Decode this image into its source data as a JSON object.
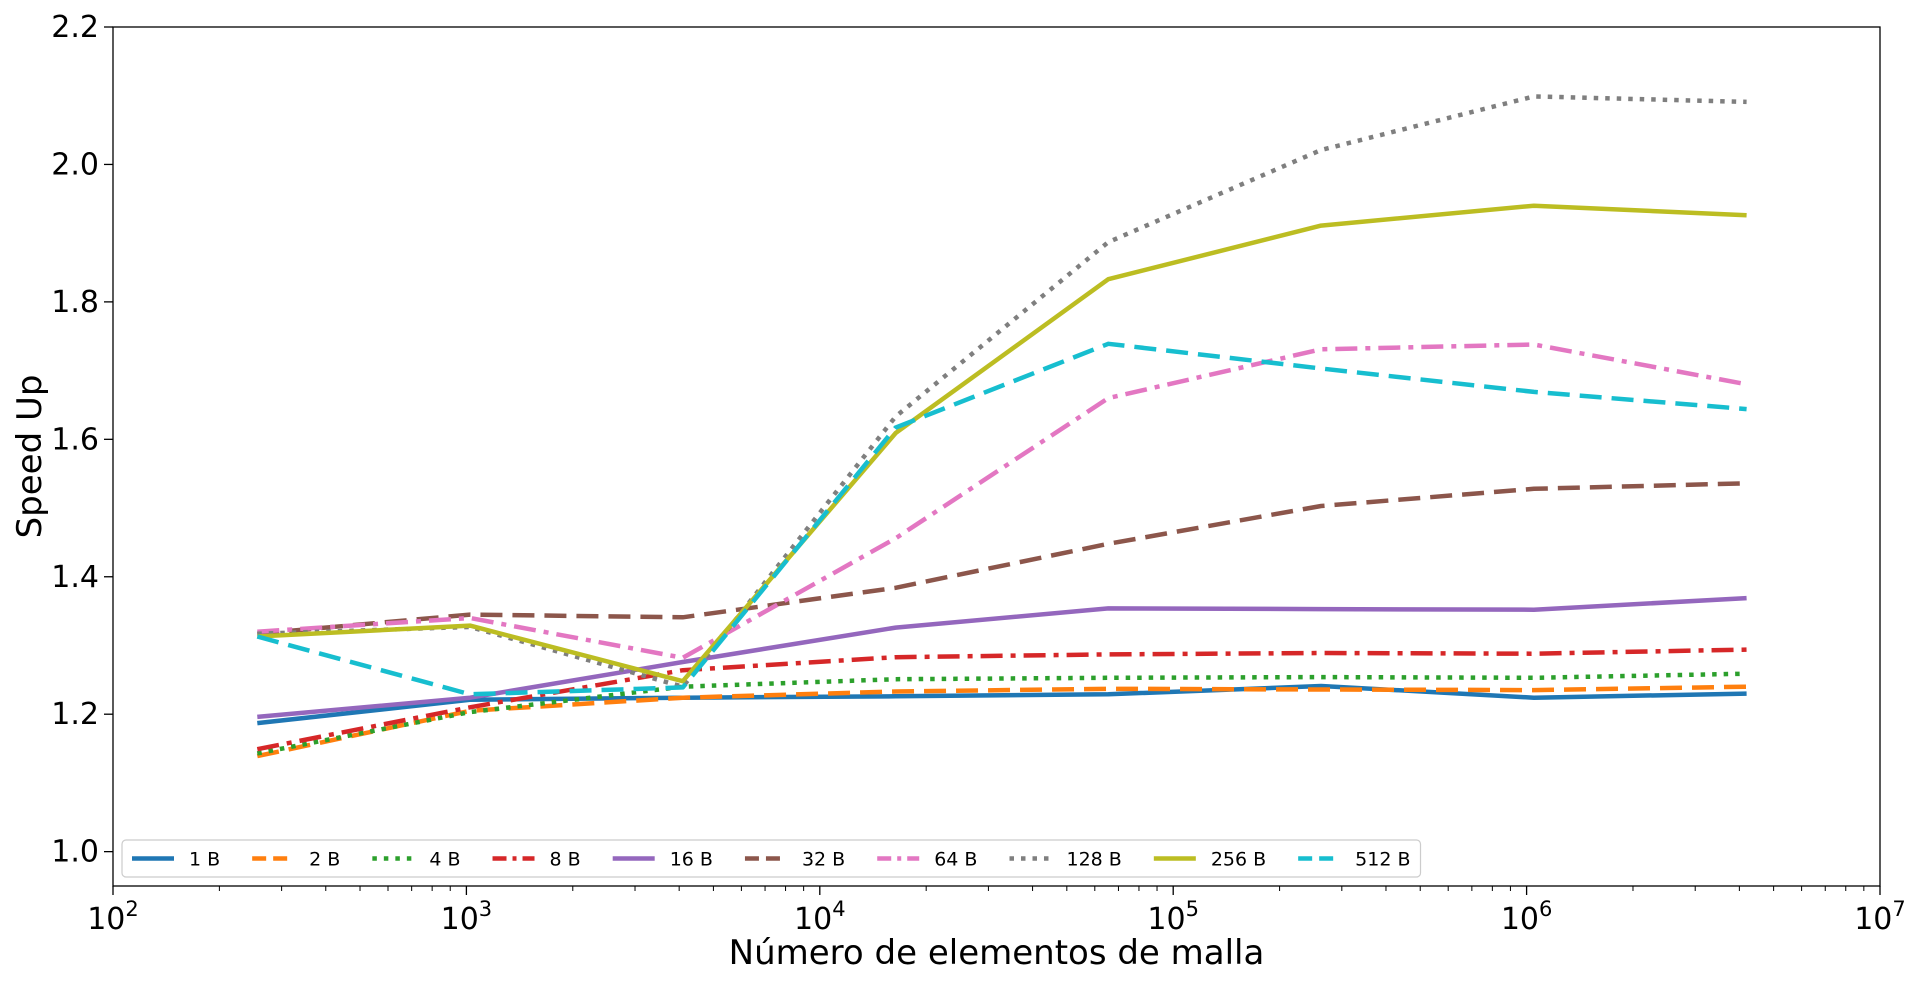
{
  "chart_data": {
    "type": "line",
    "title": "",
    "xlabel": "Número de elementos de malla",
    "ylabel": "Speed Up",
    "xscale": "log",
    "xlim": [
      100,
      10000000
    ],
    "ylim": [
      0.95,
      2.2
    ],
    "yticks": [
      "1.0",
      "1.2",
      "1.4",
      "1.6",
      "1.8",
      "2.0",
      "2.2"
    ],
    "xticks": [
      {
        "value": 100,
        "base": "10",
        "exp": "2"
      },
      {
        "value": 1000,
        "base": "10",
        "exp": "3"
      },
      {
        "value": 10000,
        "base": "10",
        "exp": "4"
      },
      {
        "value": 100000,
        "base": "10",
        "exp": "5"
      },
      {
        "value": 1000000,
        "base": "10",
        "exp": "6"
      },
      {
        "value": 10000000,
        "base": "10",
        "exp": "7"
      }
    ],
    "grid": false,
    "legend_position": "lower-left",
    "x": [
      256,
      1024,
      4096,
      16384,
      65536,
      262144,
      1048576,
      4194304
    ],
    "series": [
      {
        "name": "1 B",
        "color": "#1f77b4",
        "style": "solid",
        "values": [
          1.187,
          1.221,
          1.224,
          1.226,
          1.229,
          1.241,
          1.224,
          1.23
        ]
      },
      {
        "name": "2 B",
        "color": "#ff7f0e",
        "style": "dashed",
        "values": [
          1.139,
          1.205,
          1.224,
          1.233,
          1.237,
          1.236,
          1.235,
          1.24
        ]
      },
      {
        "name": "4 B",
        "color": "#2ca02c",
        "style": "dotted",
        "values": [
          1.143,
          1.203,
          1.24,
          1.251,
          1.253,
          1.254,
          1.253,
          1.259
        ]
      },
      {
        "name": "8 B",
        "color": "#d62728",
        "style": "dashdot",
        "values": [
          1.149,
          1.21,
          1.264,
          1.283,
          1.287,
          1.289,
          1.288,
          1.294
        ]
      },
      {
        "name": "16 B",
        "color": "#9467bd",
        "style": "solid",
        "values": [
          1.196,
          1.224,
          1.276,
          1.326,
          1.354,
          1.353,
          1.352,
          1.369
        ]
      },
      {
        "name": "32 B",
        "color": "#8c564b",
        "style": "dashed",
        "values": [
          1.317,
          1.345,
          1.341,
          1.384,
          1.448,
          1.503,
          1.528,
          1.536
        ]
      },
      {
        "name": "64 B",
        "color": "#e377c2",
        "style": "dashdot",
        "values": [
          1.32,
          1.34,
          1.282,
          1.456,
          1.66,
          1.731,
          1.738,
          1.68
        ]
      },
      {
        "name": "128 B",
        "color": "#7f7f7f",
        "style": "dotted",
        "values": [
          1.317,
          1.327,
          1.24,
          1.633,
          1.887,
          2.021,
          2.099,
          2.091
        ]
      },
      {
        "name": "256 B",
        "color": "#bcbd22",
        "style": "solid",
        "values": [
          1.313,
          1.329,
          1.248,
          1.609,
          1.833,
          1.911,
          1.94,
          1.926
        ]
      },
      {
        "name": "512 B",
        "color": "#17becf",
        "style": "dashed",
        "values": [
          1.313,
          1.229,
          1.239,
          1.617,
          1.739,
          1.703,
          1.669,
          1.644
        ]
      }
    ]
  }
}
